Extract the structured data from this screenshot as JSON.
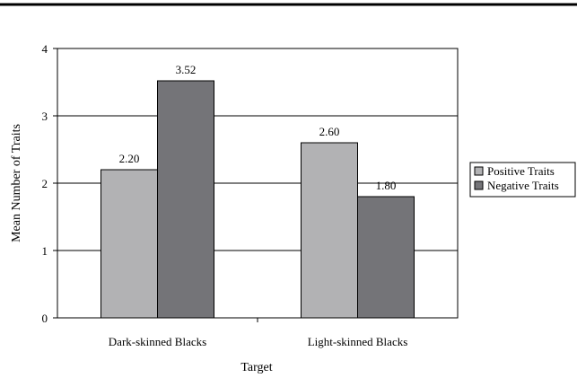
{
  "chart_data": {
    "type": "bar",
    "categories": [
      "Dark-skinned Blacks",
      "Light-skinned Blacks"
    ],
    "series": [
      {
        "name": "Positive Traits",
        "values": [
          2.2,
          2.6
        ],
        "labels": [
          "2.20",
          "2.60"
        ],
        "color": "#b2b2b4"
      },
      {
        "name": "Negative Traits",
        "values": [
          3.52,
          1.8
        ],
        "labels": [
          "3.52",
          "1.80"
        ],
        "color": "#747478"
      }
    ],
    "xlabel": "Target",
    "ylabel": "Mean Number of Traits",
    "ylim": [
      0,
      4
    ],
    "yticks": [
      "0",
      "1",
      "2",
      "3",
      "4"
    ],
    "grid": true,
    "legend": "right"
  }
}
